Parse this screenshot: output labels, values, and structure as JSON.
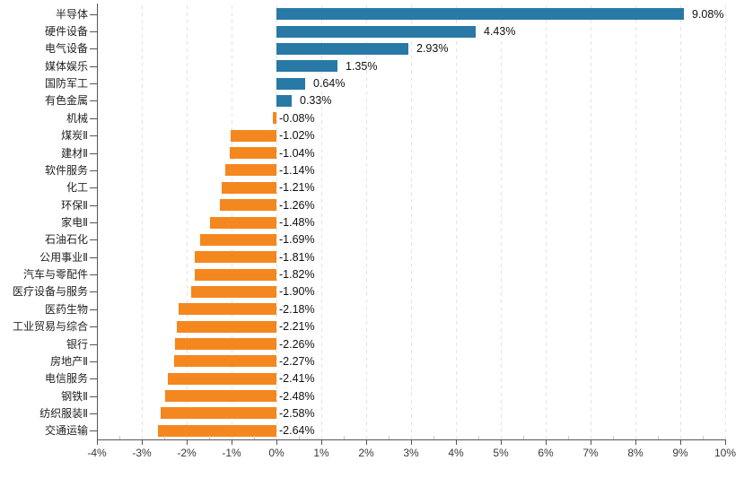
{
  "chart_data": {
    "type": "bar",
    "orientation": "horizontal",
    "categories": [
      "半导体",
      "硬件设备",
      "电气设备",
      "媒体娱乐",
      "国防军工",
      "有色金属",
      "机械",
      "煤炭Ⅱ",
      "建材Ⅱ",
      "软件服务",
      "化工",
      "环保Ⅱ",
      "家电Ⅱ",
      "石油石化",
      "公用事业Ⅱ",
      "汽车与零配件",
      "医疗设备与服务",
      "医药生物",
      "工业贸易与综合",
      "银行",
      "房地产Ⅱ",
      "电信服务",
      "钢铁Ⅱ",
      "纺织服装Ⅱ",
      "交通运输"
    ],
    "values": [
      9.08,
      4.43,
      2.93,
      1.35,
      0.64,
      0.33,
      -0.08,
      -1.02,
      -1.04,
      -1.14,
      -1.21,
      -1.26,
      -1.48,
      -1.69,
      -1.81,
      -1.82,
      -1.9,
      -2.18,
      -2.21,
      -2.26,
      -2.27,
      -2.41,
      -2.48,
      -2.58,
      -2.64
    ],
    "value_labels": [
      "9.08%",
      "4.43%",
      "2.93%",
      "1.35%",
      "0.64%",
      "0.33%",
      "-0.08%",
      "-1.02%",
      "-1.04%",
      "-1.14%",
      "-1.21%",
      "-1.26%",
      "-1.48%",
      "-1.69%",
      "-1.81%",
      "-1.82%",
      "-1.90%",
      "-2.18%",
      "-2.21%",
      "-2.26%",
      "-2.27%",
      "-2.41%",
      "-2.48%",
      "-2.58%",
      "-2.64%"
    ],
    "x_tick_labels": [
      "-4%",
      "-3%",
      "-2%",
      "-1%",
      "0%",
      "1%",
      "2%",
      "3%",
      "4%",
      "5%",
      "6%",
      "7%",
      "8%",
      "9%",
      "10%"
    ],
    "xlim": [
      -4,
      10
    ],
    "grid": "vertical-dashed",
    "legend": "none",
    "colors": {
      "positive_bar": "#2879a6",
      "negative_bar": "#f5871f",
      "gridline": "#e3e3e3",
      "axis": "#555555",
      "value_text": "#111111",
      "category_text": "#222222",
      "tick_text": "#3a3a3a"
    }
  }
}
